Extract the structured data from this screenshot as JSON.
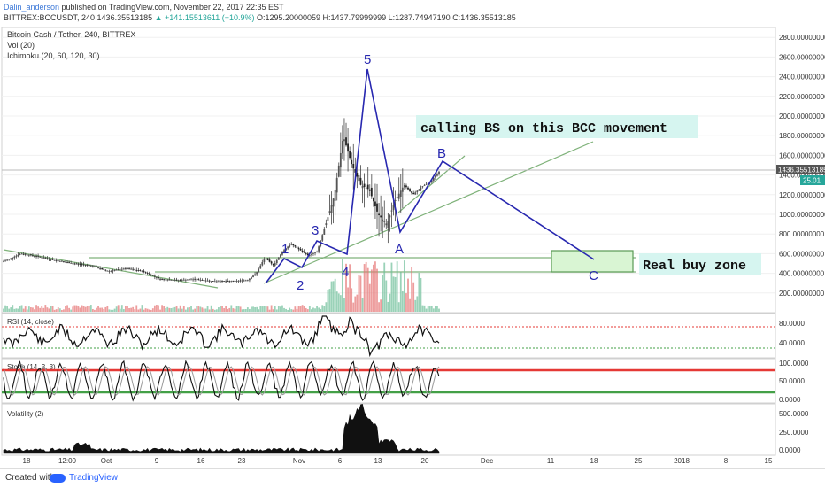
{
  "header": {
    "user": "Dalin_anderson",
    "published": " published on TradingView.com, November 22, 2017 22:35 EST",
    "symbol": "BITTREX:BCCUSDT, 240",
    "last": "1436.35513185",
    "change": "▲ +141.15513611 (+10.9%)",
    "ohlc": "O:1295.20000059 H:1437.79999999 L:1287.74947190 C:1436.35513185"
  },
  "legend": {
    "title": "Bitcoin Cash / Tether, 240, BITTREX",
    "vol": "Vol (20)",
    "ichimoku": "Ichimoku (20, 60, 120, 30)"
  },
  "annotations": {
    "calling": "calling BS on this BCC movement",
    "buyzone": "Real buy zone",
    "waves": [
      "1",
      "2",
      "3",
      "4",
      "5",
      "A",
      "B",
      "C"
    ]
  },
  "price_labels": {
    "last": "1436.35513185",
    "vol": "25.01"
  },
  "panels": {
    "rsi": {
      "label": "RSI (14, close)",
      "ticks": [
        "80.0000",
        "40.0000"
      ],
      "upper": 70,
      "lower": 30
    },
    "stoch": {
      "label": "Stoch (14, 3, 3)",
      "ticks": [
        "100.0000",
        "50.0000",
        "0.0000"
      ],
      "upper": 80,
      "lower": 20
    },
    "volatility": {
      "label": "Volatility (2)",
      "ticks": [
        "500.0000",
        "250.0000",
        "0.0000"
      ]
    }
  },
  "colors": {
    "wave": "#2828b0",
    "trend": "#7fb27a",
    "candle": "#333333",
    "rsi_upper": "#e53935",
    "rsi_lower": "#43a047",
    "buy_zone": "#d9f5d3",
    "callout_bg": "#d6f5f0"
  },
  "footer": {
    "made": "Created with",
    "brand": "TradingView"
  },
  "chart_data": {
    "type": "line",
    "title": "Bitcoin Cash / Tether, 240, BITTREX",
    "xlabel": "",
    "ylabel": "",
    "ylim": [
      0,
      2900
    ],
    "y_ticks": [
      "2800.00000000",
      "2600.00000000",
      "2400.00000000",
      "2200.00000000",
      "2000.00000000",
      "1800.00000000",
      "1600.00000000",
      "1400.00000000",
      "1200.00000000",
      "1000.00000000",
      "800.00000000",
      "600.00000000",
      "400.00000000",
      "200.00000000",
      "0.00000000"
    ],
    "x_ticks": [
      "18",
      "12:00",
      "Oct",
      "9",
      "16",
      "23",
      "Nov",
      "6",
      "13",
      "20",
      "Dec",
      "11",
      "18",
      "25",
      "2018",
      "8",
      "15"
    ],
    "price_series": [
      {
        "t": 0,
        "p": 520
      },
      {
        "t": 4,
        "p": 600
      },
      {
        "t": 8,
        "p": 570
      },
      {
        "t": 12,
        "p": 530
      },
      {
        "t": 16,
        "p": 500
      },
      {
        "t": 20,
        "p": 480
      },
      {
        "t": 24,
        "p": 420
      },
      {
        "t": 28,
        "p": 450
      },
      {
        "t": 32,
        "p": 420
      },
      {
        "t": 36,
        "p": 340
      },
      {
        "t": 40,
        "p": 330
      },
      {
        "t": 44,
        "p": 340
      },
      {
        "t": 48,
        "p": 320
      },
      {
        "t": 52,
        "p": 320
      },
      {
        "t": 56,
        "p": 330
      },
      {
        "t": 58,
        "p": 400
      },
      {
        "t": 60,
        "p": 560
      },
      {
        "t": 62,
        "p": 480
      },
      {
        "t": 64,
        "p": 620
      },
      {
        "t": 66,
        "p": 700
      },
      {
        "t": 68,
        "p": 640
      },
      {
        "t": 70,
        "p": 580
      },
      {
        "t": 72,
        "p": 620
      },
      {
        "t": 74,
        "p": 900
      },
      {
        "t": 76,
        "p": 1200
      },
      {
        "t": 78,
        "p": 1800
      },
      {
        "t": 80,
        "p": 1500
      },
      {
        "t": 82,
        "p": 1300
      },
      {
        "t": 84,
        "p": 1250
      },
      {
        "t": 86,
        "p": 1000
      },
      {
        "t": 88,
        "p": 900
      },
      {
        "t": 90,
        "p": 1150
      },
      {
        "t": 92,
        "p": 1300
      },
      {
        "t": 94,
        "p": 1200
      },
      {
        "t": 96,
        "p": 1280
      },
      {
        "t": 98,
        "p": 1330
      },
      {
        "t": 100,
        "p": 1436
      }
    ],
    "elliott_wave": [
      {
        "label": "1",
        "p": 560
      },
      {
        "label": "2",
        "p": 440
      },
      {
        "label": "3",
        "p": 730
      },
      {
        "label": "4",
        "p": 570
      },
      {
        "label": "5",
        "p": 2460
      },
      {
        "label": "A",
        "p": 800
      },
      {
        "label": "B",
        "p": 1520
      },
      {
        "label": "C",
        "p": 520
      }
    ],
    "buy_zone": {
      "p_low": 430,
      "p_high": 630
    }
  }
}
